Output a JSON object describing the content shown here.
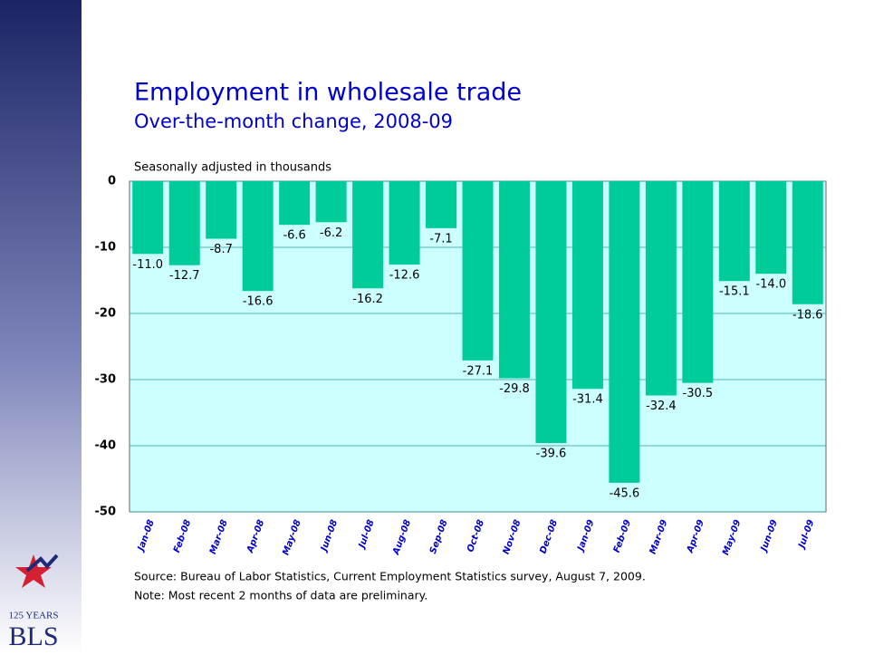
{
  "chart_data": {
    "type": "bar",
    "title": "Employment in wholesale trade",
    "subtitle": "Over-the-month change, 2008-09",
    "y_label": "Seasonally adjusted in thousands",
    "categories": [
      "Jan-08",
      "Feb-08",
      "Mar-08",
      "Apr-08",
      "May-08",
      "Jun-08",
      "Jul-08",
      "Aug-08",
      "Sep-08",
      "Oct-08",
      "Nov-08",
      "Dec-08",
      "Jan-09",
      "Feb-09",
      "Mar-09",
      "Apr-09",
      "May-09",
      "Jun-09",
      "Jul-09"
    ],
    "values": [
      -11,
      -12.7,
      -8.7,
      -16.6,
      -6.6,
      -6.2,
      -16.2,
      -12.6,
      -7.1,
      -27.1,
      -29.8,
      -39.6,
      -31.4,
      -45.6,
      -32.4,
      -30.5,
      -15.1,
      -14,
      -18.6
    ],
    "value_labels": [
      "-11.0",
      "-12.7",
      "-8.7",
      "-16.6",
      "-6.6",
      "-6.2",
      "-16.2",
      "-12.6",
      "-7.1",
      "-27.1",
      "-29.8",
      "-39.6",
      "-31.4",
      "-45.6",
      "-32.4",
      "-30.5",
      "-15.1",
      "-14.0",
      "-18.6"
    ],
    "color": "#00cc99",
    "ylim": [
      -50,
      0
    ],
    "yticks": [
      0,
      -10,
      -20,
      -30,
      -40,
      -50
    ],
    "grid": true,
    "source": "Source:  Bureau of Labor Statistics, Current Employment Statistics survey, August 7, 2009.",
    "note": "Note:  Most recent 2 months of data are preliminary."
  },
  "logo": {
    "years": "125 YEARS",
    "name": "BLS"
  }
}
